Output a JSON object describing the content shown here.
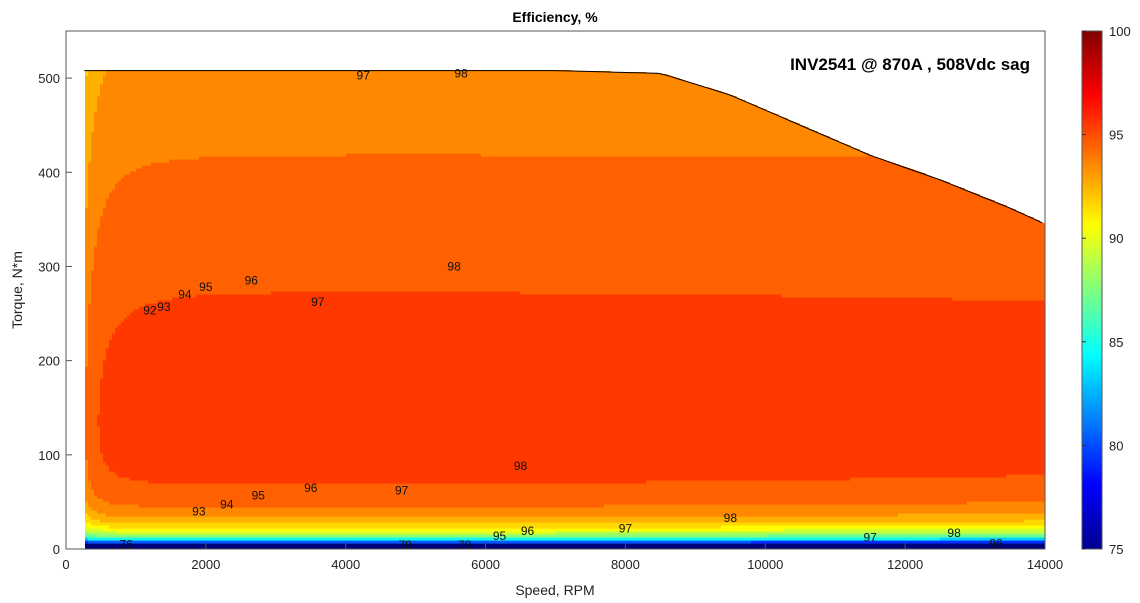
{
  "chart_data": {
    "type": "filled-contour",
    "title": "Efficiency, %",
    "annotation": "INV2541 @ 870A , 508Vdc sag",
    "xlabel": "Speed, RPM",
    "ylabel": "Torque, N*m",
    "xlim": [
      0,
      14000
    ],
    "ylim": [
      0,
      550
    ],
    "x_ticks": [
      0,
      2000,
      4000,
      6000,
      8000,
      10000,
      12000,
      14000
    ],
    "y_ticks": [
      0,
      100,
      200,
      300,
      400,
      500
    ],
    "colorbar": {
      "colormap": "jet",
      "range": [
        75,
        100
      ],
      "ticks": [
        75,
        80,
        85,
        90,
        95,
        100
      ]
    },
    "torque_envelope": {
      "speed_rpm": [
        0,
        7000,
        8500,
        9500,
        10500,
        11500,
        12500,
        13500,
        14000
      ],
      "max_torque_nm": [
        508,
        508,
        505,
        482,
        450,
        418,
        392,
        362,
        345
      ]
    },
    "contour_levels": [
      {
        "level": 76,
        "color": "#00008f"
      },
      {
        "level": 77,
        "color": "#0000b5"
      },
      {
        "level": 78,
        "color": "#0000da"
      },
      {
        "level": 79,
        "color": "#0008ff"
      },
      {
        "level": 80,
        "color": "#0030ff"
      },
      {
        "level": 81,
        "color": "#0058ff"
      },
      {
        "level": 82,
        "color": "#0080ff"
      },
      {
        "level": 83,
        "color": "#00a8ff"
      },
      {
        "level": 84,
        "color": "#00d0ff"
      },
      {
        "level": 85,
        "color": "#0ff8f0"
      },
      {
        "level": 86,
        "color": "#37ffc8"
      },
      {
        "level": 87,
        "color": "#5fffa0"
      },
      {
        "level": 88,
        "color": "#87ff78"
      },
      {
        "level": 89,
        "color": "#afff50"
      },
      {
        "level": 90,
        "color": "#d7ff28"
      },
      {
        "level": 91,
        "color": "#ffff00"
      },
      {
        "level": 92,
        "color": "#ffd800"
      },
      {
        "level": 93,
        "color": "#ffb000"
      },
      {
        "level": 94,
        "color": "#ff8800"
      },
      {
        "level": 95,
        "color": "#ff6000"
      },
      {
        "level": 96,
        "color": "#ff3800"
      },
      {
        "level": 97,
        "color": "#ff1000"
      },
      {
        "level": 98,
        "color": "#ca0000"
      }
    ],
    "contour_labels": [
      {
        "text": "98",
        "x": 5550,
        "y": 300
      },
      {
        "text": "97",
        "x": 3600,
        "y": 262
      },
      {
        "text": "96",
        "x": 2650,
        "y": 285
      },
      {
        "text": "95",
        "x": 2000,
        "y": 278
      },
      {
        "text": "94",
        "x": 1700,
        "y": 270
      },
      {
        "text": "93",
        "x": 1400,
        "y": 257
      },
      {
        "text": "92",
        "x": 1200,
        "y": 253
      },
      {
        "text": "98",
        "x": 6500,
        "y": 88
      },
      {
        "text": "97",
        "x": 4800,
        "y": 62
      },
      {
        "text": "96",
        "x": 3500,
        "y": 65
      },
      {
        "text": "95",
        "x": 2750,
        "y": 57
      },
      {
        "text": "94",
        "x": 2300,
        "y": 47
      },
      {
        "text": "93",
        "x": 1900,
        "y": 40
      },
      {
        "text": "98",
        "x": 9500,
        "y": 33
      },
      {
        "text": "97",
        "x": 8000,
        "y": 22
      },
      {
        "text": "96",
        "x": 6600,
        "y": 19
      },
      {
        "text": "95",
        "x": 6200,
        "y": 14
      },
      {
        "text": "97",
        "x": 11500,
        "y": 12
      },
      {
        "text": "98",
        "x": 12700,
        "y": 17
      },
      {
        "text": "96",
        "x": 13300,
        "y": 6
      },
      {
        "text": "97",
        "x": 4250,
        "y": 503
      },
      {
        "text": "98",
        "x": 5650,
        "y": 505
      },
      {
        "text": "76",
        "x": 860,
        "y": 5
      },
      {
        "text": "78",
        "x": 4850,
        "y": 4
      },
      {
        "text": "78",
        "x": 5700,
        "y": 4
      }
    ]
  }
}
